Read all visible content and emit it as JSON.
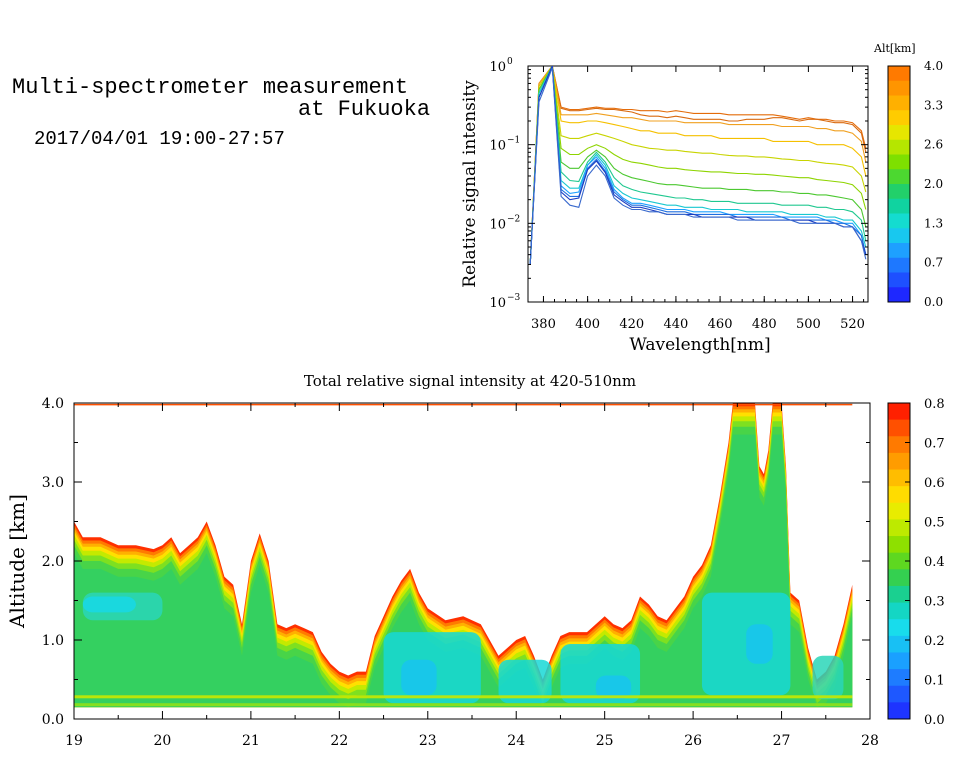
{
  "header": {
    "title_line1": "Multi-spectrometer measurement",
    "title_line2": "at Fukuoka",
    "date_range": "2017/04/01 19:00-27:57"
  },
  "chart_data": [
    {
      "type": "line",
      "xlabel": "Wavelength[nm]",
      "ylabel": "Relative signal intensity",
      "yscale": "log",
      "xlim": [
        373,
        527
      ],
      "ylim": [
        0.001,
        1
      ],
      "x_ticks": [
        "380",
        "400",
        "420",
        "440",
        "460",
        "480",
        "500",
        "520"
      ],
      "y_ticks": [
        "10",
        "10",
        "10",
        "10"
      ],
      "y_tick_exponents": [
        "0",
        "−1",
        "−2",
        "−3"
      ],
      "colorbar": {
        "label": "Alt[km]",
        "ticks": [
          "4.0",
          "3.3",
          "2.6",
          "2.0",
          "1.3",
          "0.7",
          "0.0"
        ],
        "colors": [
          "#ff7a00",
          "#ff9500",
          "#ffb000",
          "#ffcc00",
          "#e6e600",
          "#b5e600",
          "#7ee000",
          "#4cd830",
          "#22d06a",
          "#10d3a0",
          "#14dcd0",
          "#18c8ef",
          "#1ea0ff",
          "#1e78ff",
          "#1e50ff",
          "#1e28ff"
        ]
      },
      "x": [
        374,
        378,
        384,
        388,
        392,
        396,
        400,
        404,
        408,
        412,
        416,
        420,
        424,
        428,
        432,
        436,
        440,
        444,
        448,
        452,
        456,
        460,
        464,
        468,
        472,
        476,
        480,
        484,
        488,
        492,
        496,
        500,
        504,
        508,
        512,
        516,
        520,
        524,
        526
      ],
      "series": [
        {
          "alt": 3.9,
          "color": "#e46c0a",
          "values": [
            0.003,
            0.6,
            1.0,
            0.3,
            0.28,
            0.28,
            0.29,
            0.3,
            0.29,
            0.29,
            0.28,
            0.28,
            0.27,
            0.27,
            0.27,
            0.26,
            0.27,
            0.26,
            0.25,
            0.25,
            0.25,
            0.25,
            0.24,
            0.24,
            0.24,
            0.24,
            0.24,
            0.24,
            0.23,
            0.22,
            0.21,
            0.22,
            0.21,
            0.21,
            0.2,
            0.2,
            0.19,
            0.15,
            0.09
          ]
        },
        {
          "alt": 3.6,
          "color": "#d96a10",
          "values": [
            0.003,
            0.6,
            1.0,
            0.29,
            0.27,
            0.27,
            0.28,
            0.29,
            0.28,
            0.28,
            0.27,
            0.26,
            0.24,
            0.23,
            0.23,
            0.22,
            0.23,
            0.22,
            0.21,
            0.21,
            0.21,
            0.21,
            0.2,
            0.2,
            0.21,
            0.21,
            0.21,
            0.22,
            0.22,
            0.21,
            0.2,
            0.21,
            0.21,
            0.2,
            0.19,
            0.19,
            0.18,
            0.14,
            0.08
          ]
        },
        {
          "alt": 3.3,
          "color": "#f0a020",
          "values": [
            0.003,
            0.6,
            1.0,
            0.24,
            0.24,
            0.24,
            0.24,
            0.25,
            0.24,
            0.23,
            0.22,
            0.22,
            0.21,
            0.2,
            0.2,
            0.2,
            0.2,
            0.19,
            0.19,
            0.19,
            0.19,
            0.19,
            0.18,
            0.18,
            0.18,
            0.18,
            0.18,
            0.18,
            0.17,
            0.17,
            0.17,
            0.17,
            0.16,
            0.16,
            0.15,
            0.15,
            0.14,
            0.11,
            0.06
          ]
        },
        {
          "alt": 2.9,
          "color": "#f5c000",
          "values": [
            0.003,
            0.55,
            1.0,
            0.2,
            0.19,
            0.19,
            0.2,
            0.2,
            0.19,
            0.18,
            0.17,
            0.16,
            0.15,
            0.15,
            0.14,
            0.14,
            0.14,
            0.13,
            0.13,
            0.13,
            0.13,
            0.12,
            0.12,
            0.12,
            0.12,
            0.12,
            0.12,
            0.11,
            0.11,
            0.11,
            0.11,
            0.11,
            0.1,
            0.1,
            0.1,
            0.1,
            0.09,
            0.07,
            0.04
          ]
        },
        {
          "alt": 2.6,
          "color": "#c8d400",
          "values": [
            0.003,
            0.55,
            1.0,
            0.13,
            0.12,
            0.12,
            0.13,
            0.14,
            0.13,
            0.12,
            0.11,
            0.1,
            0.095,
            0.09,
            0.088,
            0.085,
            0.085,
            0.082,
            0.08,
            0.078,
            0.078,
            0.075,
            0.073,
            0.072,
            0.072,
            0.07,
            0.07,
            0.068,
            0.066,
            0.065,
            0.063,
            0.063,
            0.06,
            0.058,
            0.057,
            0.055,
            0.052,
            0.04,
            0.025
          ]
        },
        {
          "alt": 2.3,
          "color": "#8ed400",
          "values": [
            0.003,
            0.5,
            1.0,
            0.09,
            0.075,
            0.075,
            0.09,
            0.1,
            0.09,
            0.075,
            0.065,
            0.06,
            0.058,
            0.055,
            0.052,
            0.05,
            0.05,
            0.048,
            0.047,
            0.046,
            0.045,
            0.045,
            0.044,
            0.043,
            0.043,
            0.042,
            0.042,
            0.041,
            0.04,
            0.039,
            0.038,
            0.038,
            0.036,
            0.035,
            0.034,
            0.033,
            0.031,
            0.024,
            0.015
          ]
        },
        {
          "alt": 2.0,
          "color": "#4cc830",
          "values": [
            0.003,
            0.5,
            1.0,
            0.06,
            0.05,
            0.05,
            0.07,
            0.085,
            0.07,
            0.05,
            0.042,
            0.038,
            0.036,
            0.034,
            0.032,
            0.031,
            0.031,
            0.03,
            0.029,
            0.028,
            0.028,
            0.028,
            0.027,
            0.027,
            0.027,
            0.026,
            0.026,
            0.026,
            0.025,
            0.025,
            0.024,
            0.024,
            0.023,
            0.023,
            0.022,
            0.021,
            0.02,
            0.015,
            0.009
          ]
        },
        {
          "alt": 1.6,
          "color": "#20c890",
          "values": [
            0.003,
            0.45,
            1.0,
            0.045,
            0.035,
            0.034,
            0.06,
            0.08,
            0.06,
            0.038,
            0.03,
            0.027,
            0.025,
            0.024,
            0.023,
            0.022,
            0.021,
            0.021,
            0.02,
            0.02,
            0.019,
            0.019,
            0.019,
            0.018,
            0.018,
            0.018,
            0.018,
            0.018,
            0.017,
            0.017,
            0.017,
            0.017,
            0.016,
            0.016,
            0.015,
            0.015,
            0.014,
            0.011,
            0.006
          ]
        },
        {
          "alt": 1.3,
          "color": "#18c8d0",
          "values": [
            0.003,
            0.45,
            1.0,
            0.035,
            0.028,
            0.028,
            0.055,
            0.075,
            0.055,
            0.03,
            0.024,
            0.021,
            0.02,
            0.019,
            0.018,
            0.017,
            0.017,
            0.016,
            0.016,
            0.016,
            0.015,
            0.015,
            0.015,
            0.015,
            0.014,
            0.014,
            0.014,
            0.014,
            0.014,
            0.013,
            0.013,
            0.013,
            0.013,
            0.012,
            0.012,
            0.011,
            0.011,
            0.008,
            0.005
          ]
        },
        {
          "alt": 1.0,
          "color": "#1ea0ff",
          "values": [
            0.003,
            0.4,
            1.0,
            0.03,
            0.024,
            0.025,
            0.055,
            0.07,
            0.05,
            0.027,
            0.021,
            0.018,
            0.018,
            0.017,
            0.016,
            0.015,
            0.015,
            0.015,
            0.014,
            0.014,
            0.014,
            0.014,
            0.013,
            0.013,
            0.013,
            0.013,
            0.013,
            0.013,
            0.012,
            0.012,
            0.012,
            0.012,
            0.012,
            0.011,
            0.011,
            0.01,
            0.01,
            0.007,
            0.004
          ]
        },
        {
          "alt": 0.6,
          "color": "#1e6ee0",
          "values": [
            0.003,
            0.4,
            1.0,
            0.027,
            0.022,
            0.022,
            0.05,
            0.065,
            0.046,
            0.025,
            0.02,
            0.017,
            0.017,
            0.016,
            0.015,
            0.014,
            0.014,
            0.014,
            0.013,
            0.013,
            0.013,
            0.013,
            0.013,
            0.012,
            0.012,
            0.012,
            0.012,
            0.012,
            0.012,
            0.011,
            0.011,
            0.011,
            0.011,
            0.011,
            0.01,
            0.01,
            0.009,
            0.007,
            0.004
          ]
        },
        {
          "alt": 0.2,
          "color": "#1c3cc0",
          "values": [
            0.003,
            0.4,
            1.0,
            0.025,
            0.02,
            0.021,
            0.048,
            0.062,
            0.044,
            0.023,
            0.019,
            0.016,
            0.016,
            0.015,
            0.014,
            0.013,
            0.013,
            0.013,
            0.013,
            0.012,
            0.012,
            0.012,
            0.012,
            0.012,
            0.012,
            0.011,
            0.011,
            0.011,
            0.011,
            0.011,
            0.011,
            0.011,
            0.01,
            0.01,
            0.01,
            0.009,
            0.009,
            0.006,
            0.004
          ]
        },
        {
          "alt": 0.1,
          "color": "#3a6acd",
          "values": [
            0.003,
            0.35,
            0.95,
            0.022,
            0.017,
            0.016,
            0.04,
            0.055,
            0.04,
            0.021,
            0.017,
            0.015,
            0.015,
            0.014,
            0.014,
            0.013,
            0.013,
            0.013,
            0.012,
            0.012,
            0.012,
            0.012,
            0.012,
            0.011,
            0.011,
            0.011,
            0.011,
            0.011,
            0.011,
            0.011,
            0.01,
            0.01,
            0.01,
            0.01,
            0.01,
            0.009,
            0.009,
            0.006,
            0.0035
          ]
        }
      ]
    },
    {
      "type": "heatmap",
      "title": "Total relative signal intensity at 420-510nm",
      "ylabel": "Altitude [km]",
      "xlim": [
        19,
        28
      ],
      "ylim": [
        0,
        4
      ],
      "x_ticks": [
        "19",
        "20",
        "21",
        "22",
        "23",
        "24",
        "25",
        "26",
        "27",
        "28"
      ],
      "y_ticks": [
        "0.0",
        "1.0",
        "2.0",
        "3.0",
        "4.0"
      ],
      "colorbar": {
        "ticks": [
          "0.8",
          "0.7",
          "0.6",
          "0.5",
          "0.4",
          "0.3",
          "0.2",
          "0.1",
          "0.0"
        ],
        "colors": [
          "#ff2000",
          "#ff5000",
          "#ff7a00",
          "#ff9c00",
          "#ffbd00",
          "#ffdc00",
          "#e8ec00",
          "#bdea00",
          "#8ee000",
          "#5ed820",
          "#34d050",
          "#1ad090",
          "#14d6c4",
          "#18dcec",
          "#18c0f4",
          "#1aa0ff",
          "#1e7cff",
          "#1e58ff",
          "#1e34ff"
        ]
      },
      "data_extent": {
        "x_start": 19.0,
        "x_end": 27.8,
        "y_start": 0.15
      },
      "top_envelope": {
        "x": [
          19.0,
          19.1,
          19.3,
          19.5,
          19.7,
          19.9,
          20.0,
          20.1,
          20.2,
          20.3,
          20.4,
          20.5,
          20.6,
          20.7,
          20.8,
          20.9,
          21.0,
          21.1,
          21.2,
          21.3,
          21.4,
          21.5,
          21.6,
          21.7,
          21.8,
          21.9,
          22.0,
          22.1,
          22.2,
          22.3,
          22.4,
          22.5,
          22.6,
          22.7,
          22.8,
          22.9,
          23.0,
          23.2,
          23.4,
          23.6,
          23.8,
          23.9,
          24.0,
          24.1,
          24.2,
          24.3,
          24.4,
          24.5,
          24.6,
          24.8,
          25.0,
          25.1,
          25.2,
          25.3,
          25.4,
          25.5,
          25.6,
          25.7,
          25.8,
          25.9,
          26.0,
          26.1,
          26.2,
          26.3,
          26.4,
          26.45,
          26.7,
          26.75,
          26.8,
          26.85,
          26.9,
          27.0,
          27.05,
          27.1,
          27.2,
          27.3,
          27.4,
          27.5,
          27.6,
          27.7,
          27.8
        ],
        "y": [
          2.5,
          2.3,
          2.3,
          2.2,
          2.2,
          2.15,
          2.2,
          2.3,
          2.1,
          2.2,
          2.3,
          2.5,
          2.2,
          1.8,
          1.7,
          1.2,
          2.0,
          2.35,
          2.0,
          1.2,
          1.15,
          1.2,
          1.15,
          1.1,
          0.85,
          0.7,
          0.6,
          0.55,
          0.6,
          0.6,
          1.05,
          1.3,
          1.55,
          1.75,
          1.9,
          1.6,
          1.4,
          1.25,
          1.3,
          1.2,
          0.8,
          0.9,
          1.0,
          1.05,
          0.8,
          0.5,
          0.8,
          1.05,
          1.1,
          1.1,
          1.3,
          1.2,
          1.15,
          1.25,
          1.55,
          1.45,
          1.3,
          1.25,
          1.4,
          1.55,
          1.8,
          1.95,
          2.2,
          2.8,
          3.5,
          4.0,
          4.0,
          3.2,
          3.1,
          3.4,
          4.0,
          4.0,
          3.2,
          1.6,
          1.5,
          0.9,
          0.5,
          0.6,
          0.8,
          1.2,
          1.7
        ]
      }
    }
  ]
}
